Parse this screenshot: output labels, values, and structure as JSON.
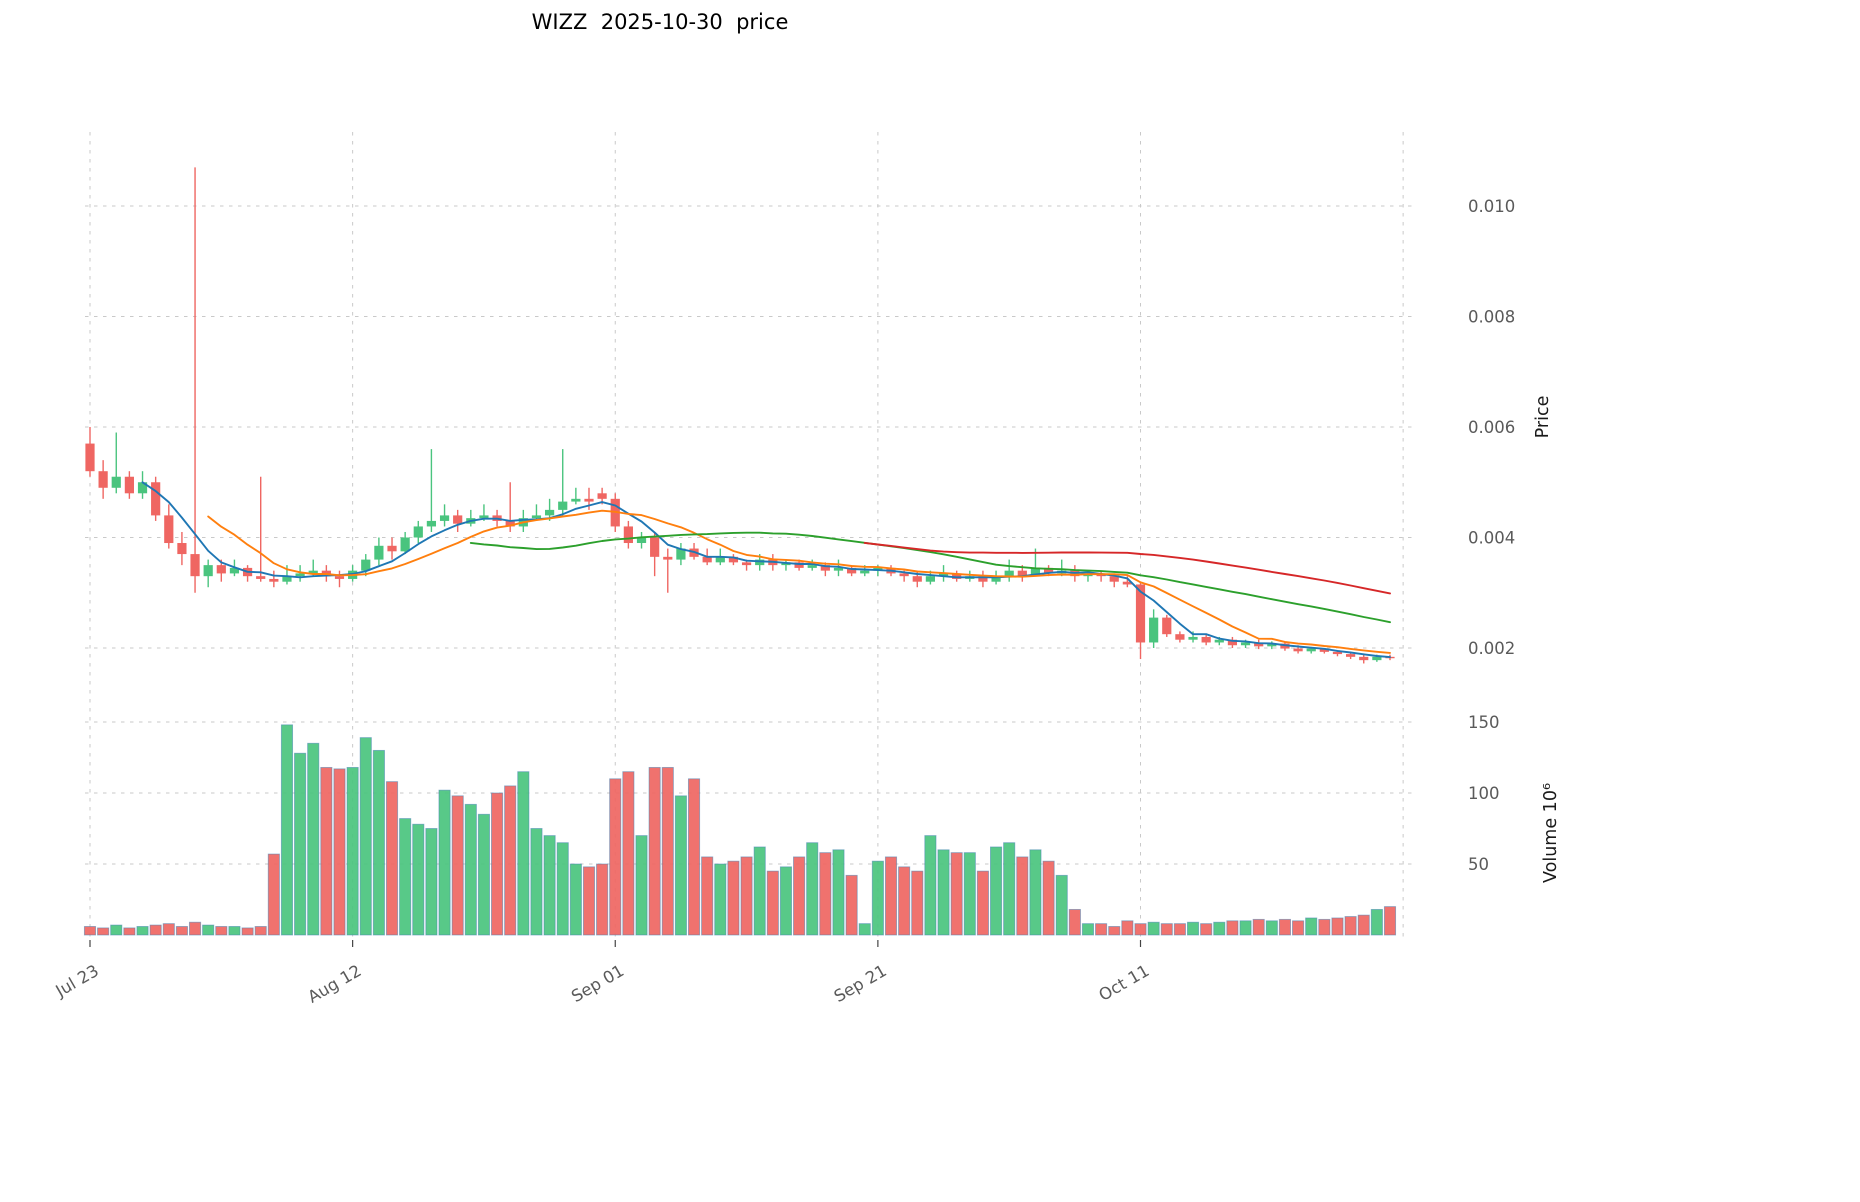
{
  "chart_data": {
    "type": "candlestick",
    "title": "WIZZ  2025-10-30  price",
    "panels": [
      "price",
      "volume"
    ],
    "ylabel_price": "Price",
    "ylabel_volume": "Volume  10⁶",
    "x_tick_labels": [
      "Jul 23",
      "Aug 12",
      "Sep 01",
      "Sep 21",
      "Oct 11"
    ],
    "x_tick_indices": [
      0,
      20,
      40,
      60,
      80
    ],
    "price_tick_values": [
      0.002,
      0.004,
      0.006,
      0.008,
      0.01
    ],
    "price_tick_labels": [
      "0.002",
      "0.004",
      "0.006",
      "0.008",
      "0.010"
    ],
    "volume_tick_values": [
      50,
      100,
      150
    ],
    "volume_tick_labels": [
      "50",
      "100",
      "150"
    ],
    "ylim_price": [
      0.0014,
      0.0113
    ],
    "ylim_volume": [
      0,
      160
    ],
    "grid": "dashed",
    "grid_color": "#c9c9c9",
    "candle_up_color": "#4ac47e",
    "candle_down_color": "#ef6662",
    "volume_bar_edge": "#4583b5",
    "ma_lines": [
      {
        "period": 5,
        "color": "#1f77b4"
      },
      {
        "period": 10,
        "color": "#ff7f0e"
      },
      {
        "period": 30,
        "color": "#2ca02c"
      },
      {
        "period": 60,
        "color": "#d62728"
      }
    ],
    "dates": [
      "2025-07-23",
      "2025-07-24",
      "2025-07-25",
      "2025-07-26",
      "2025-07-27",
      "2025-07-28",
      "2025-07-29",
      "2025-07-30",
      "2025-07-31",
      "2025-08-01",
      "2025-08-02",
      "2025-08-03",
      "2025-08-04",
      "2025-08-05",
      "2025-08-06",
      "2025-08-07",
      "2025-08-08",
      "2025-08-09",
      "2025-08-10",
      "2025-08-11",
      "2025-08-12",
      "2025-08-13",
      "2025-08-14",
      "2025-08-15",
      "2025-08-16",
      "2025-08-17",
      "2025-08-18",
      "2025-08-19",
      "2025-08-20",
      "2025-08-21",
      "2025-08-22",
      "2025-08-23",
      "2025-08-24",
      "2025-08-25",
      "2025-08-26",
      "2025-08-27",
      "2025-08-28",
      "2025-08-29",
      "2025-08-30",
      "2025-08-31",
      "2025-09-01",
      "2025-09-02",
      "2025-09-03",
      "2025-09-04",
      "2025-09-05",
      "2025-09-06",
      "2025-09-07",
      "2025-09-08",
      "2025-09-09",
      "2025-09-10",
      "2025-09-11",
      "2025-09-12",
      "2025-09-13",
      "2025-09-14",
      "2025-09-15",
      "2025-09-16",
      "2025-09-17",
      "2025-09-18",
      "2025-09-19",
      "2025-09-20",
      "2025-09-21",
      "2025-09-22",
      "2025-09-23",
      "2025-09-24",
      "2025-09-25",
      "2025-09-26",
      "2025-09-27",
      "2025-09-28",
      "2025-09-29",
      "2025-09-30",
      "2025-10-01",
      "2025-10-02",
      "2025-10-03",
      "2025-10-04",
      "2025-10-05",
      "2025-10-06",
      "2025-10-07",
      "2025-10-08",
      "2025-10-09",
      "2025-10-10",
      "2025-10-11",
      "2025-10-12",
      "2025-10-13",
      "2025-10-14",
      "2025-10-15",
      "2025-10-16",
      "2025-10-17",
      "2025-10-18",
      "2025-10-19",
      "2025-10-20",
      "2025-10-21",
      "2025-10-22",
      "2025-10-23",
      "2025-10-24",
      "2025-10-25",
      "2025-10-26",
      "2025-10-27",
      "2025-10-28",
      "2025-10-29",
      "2025-10-30"
    ],
    "open": [
      0.0057,
      0.0052,
      0.0049,
      0.0051,
      0.0048,
      0.005,
      0.0044,
      0.0039,
      0.0037,
      0.0033,
      0.0035,
      0.00335,
      0.00345,
      0.0033,
      0.00325,
      0.0032,
      0.0033,
      0.00335,
      0.0034,
      0.0033,
      0.00325,
      0.0034,
      0.0036,
      0.00385,
      0.00375,
      0.004,
      0.0042,
      0.0043,
      0.0044,
      0.00425,
      0.00435,
      0.0044,
      0.0043,
      0.0042,
      0.00435,
      0.0044,
      0.0045,
      0.00465,
      0.0047,
      0.0048,
      0.0047,
      0.0042,
      0.0039,
      0.004,
      0.00365,
      0.0036,
      0.0038,
      0.00365,
      0.00355,
      0.00365,
      0.00355,
      0.0035,
      0.0036,
      0.0035,
      0.00355,
      0.00345,
      0.0035,
      0.0034,
      0.00345,
      0.00335,
      0.0034,
      0.00345,
      0.00335,
      0.0033,
      0.0032,
      0.0033,
      0.00335,
      0.00325,
      0.0033,
      0.0032,
      0.0033,
      0.0034,
      0.0033,
      0.00345,
      0.00335,
      0.0034,
      0.0033,
      0.00335,
      0.0033,
      0.0032,
      0.00315,
      0.0021,
      0.00255,
      0.00225,
      0.00215,
      0.0022,
      0.0021,
      0.00215,
      0.00205,
      0.0021,
      0.00203,
      0.00208,
      0.00199,
      0.00194,
      0.00199,
      0.00193,
      0.00189,
      0.00184,
      0.00178,
      0.00184
    ],
    "high": [
      0.006,
      0.0054,
      0.0059,
      0.0052,
      0.0052,
      0.0051,
      0.0046,
      0.0041,
      0.0107,
      0.0036,
      0.0036,
      0.0036,
      0.0035,
      0.0051,
      0.0034,
      0.0035,
      0.0035,
      0.0036,
      0.0035,
      0.0034,
      0.0035,
      0.0037,
      0.004,
      0.004,
      0.0041,
      0.0043,
      0.0056,
      0.0046,
      0.0045,
      0.0045,
      0.0046,
      0.0045,
      0.005,
      0.0045,
      0.0046,
      0.0047,
      0.0056,
      0.0049,
      0.0049,
      0.0049,
      0.0048,
      0.0043,
      0.0041,
      0.0041,
      0.0038,
      0.0039,
      0.0039,
      0.0038,
      0.0038,
      0.0037,
      0.0036,
      0.0037,
      0.0037,
      0.0036,
      0.0036,
      0.0036,
      0.00355,
      0.0036,
      0.0035,
      0.0035,
      0.0035,
      0.0035,
      0.0034,
      0.0034,
      0.0034,
      0.0035,
      0.0034,
      0.0034,
      0.0034,
      0.0034,
      0.0036,
      0.0035,
      0.0038,
      0.0035,
      0.0036,
      0.0035,
      0.0034,
      0.0034,
      0.00335,
      0.0033,
      0.0032,
      0.0027,
      0.0026,
      0.0023,
      0.0023,
      0.00225,
      0.0022,
      0.0022,
      0.00215,
      0.00215,
      0.00212,
      0.0021,
      0.00205,
      0.00202,
      0.002,
      0.00196,
      0.00192,
      0.00188,
      0.00188,
      0.00188
    ],
    "low": [
      0.0051,
      0.0047,
      0.0048,
      0.0047,
      0.0047,
      0.0043,
      0.0038,
      0.0035,
      0.003,
      0.0031,
      0.0032,
      0.0033,
      0.0032,
      0.0032,
      0.0031,
      0.00315,
      0.0032,
      0.0033,
      0.0032,
      0.0031,
      0.0032,
      0.0033,
      0.0035,
      0.0036,
      0.0037,
      0.0039,
      0.0041,
      0.0042,
      0.0041,
      0.0042,
      0.0043,
      0.0042,
      0.0041,
      0.0041,
      0.0043,
      0.0043,
      0.0044,
      0.0046,
      0.0045,
      0.0046,
      0.0041,
      0.0038,
      0.0038,
      0.0033,
      0.003,
      0.0035,
      0.0036,
      0.0035,
      0.0035,
      0.0035,
      0.0034,
      0.0034,
      0.0034,
      0.0034,
      0.0034,
      0.0034,
      0.0033,
      0.0033,
      0.0033,
      0.0033,
      0.0033,
      0.0033,
      0.0032,
      0.0031,
      0.00315,
      0.0032,
      0.0032,
      0.0032,
      0.0031,
      0.00315,
      0.0032,
      0.0032,
      0.0033,
      0.0033,
      0.0033,
      0.0032,
      0.0032,
      0.0032,
      0.0031,
      0.0031,
      0.0018,
      0.002,
      0.0022,
      0.0021,
      0.0021,
      0.00205,
      0.00205,
      0.002,
      0.002,
      0.00198,
      0.00198,
      0.00195,
      0.0019,
      0.0019,
      0.0019,
      0.00185,
      0.0018,
      0.00172,
      0.00175,
      0.00178
    ],
    "close": [
      0.0052,
      0.0049,
      0.0051,
      0.0048,
      0.005,
      0.0044,
      0.0039,
      0.0037,
      0.0033,
      0.0035,
      0.00335,
      0.00345,
      0.0033,
      0.00325,
      0.0032,
      0.0033,
      0.00335,
      0.0034,
      0.0033,
      0.00325,
      0.0034,
      0.0036,
      0.00385,
      0.00375,
      0.004,
      0.0042,
      0.0043,
      0.0044,
      0.00425,
      0.00435,
      0.0044,
      0.0043,
      0.0042,
      0.00435,
      0.0044,
      0.0045,
      0.00465,
      0.0047,
      0.00465,
      0.0047,
      0.0042,
      0.0039,
      0.004,
      0.00365,
      0.0036,
      0.0038,
      0.00365,
      0.00355,
      0.00365,
      0.00355,
      0.0035,
      0.0036,
      0.0035,
      0.00355,
      0.00345,
      0.0035,
      0.0034,
      0.00345,
      0.00335,
      0.0034,
      0.00345,
      0.00335,
      0.0033,
      0.0032,
      0.0033,
      0.00335,
      0.00325,
      0.0033,
      0.0032,
      0.0033,
      0.0034,
      0.0033,
      0.00345,
      0.00335,
      0.0034,
      0.0033,
      0.00335,
      0.0033,
      0.0032,
      0.00315,
      0.0021,
      0.00255,
      0.00225,
      0.00215,
      0.0022,
      0.0021,
      0.00215,
      0.00205,
      0.0021,
      0.00203,
      0.00208,
      0.00199,
      0.00194,
      0.00199,
      0.00193,
      0.00189,
      0.00184,
      0.00178,
      0.00184,
      0.00183
    ],
    "volume_millions": [
      6,
      5,
      7,
      5,
      6,
      7,
      8,
      6,
      9,
      7,
      6,
      6,
      5,
      6,
      57,
      148,
      128,
      135,
      118,
      117,
      118,
      139,
      130,
      108,
      82,
      78,
      75,
      102,
      98,
      92,
      85,
      100,
      105,
      115,
      75,
      70,
      65,
      50,
      48,
      50,
      110,
      115,
      70,
      118,
      118,
      98,
      110,
      55,
      50,
      52,
      55,
      62,
      45,
      48,
      55,
      65,
      58,
      60,
      42,
      8,
      52,
      55,
      48,
      45,
      70,
      60,
      58,
      58,
      45,
      62,
      65,
      55,
      60,
      52,
      42,
      18,
      8,
      8,
      6,
      10,
      8,
      9,
      8,
      8,
      9,
      8,
      9,
      10,
      10,
      11,
      10,
      11,
      10,
      12,
      11,
      12,
      13,
      14,
      18,
      20
    ]
  }
}
